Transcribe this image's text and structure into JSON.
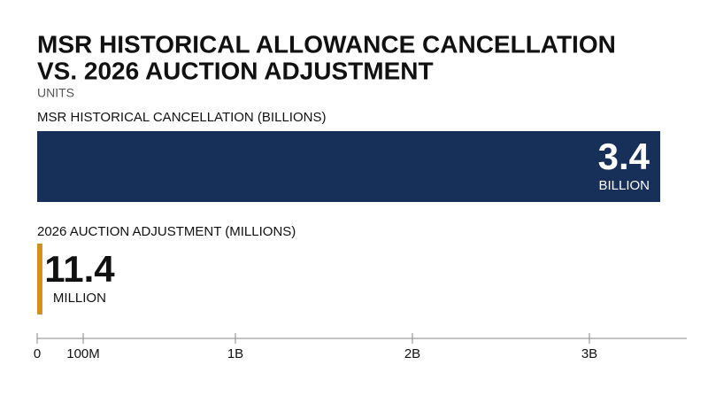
{
  "chart_data": {
    "type": "hbar",
    "title": [
      "MSR HISTORICAL ALLOWANCE CANCELLATION",
      "VS. 2026 AUCTION ADJUSTMENT"
    ],
    "subtitle": "UNITS",
    "categories": [
      "MSR HISTORICAL CANCELLATION (BILLIONS)",
      "2026 AUCTION ADJUSTMENT (MILLIONS)"
    ],
    "values": [
      3400000000,
      11400000
    ],
    "value_labels": [
      "3.4",
      "11.4"
    ],
    "unit_labels": [
      "BILLION",
      "MILLION"
    ],
    "colors": [
      "#17305a",
      "#d4901e"
    ],
    "xlim": [
      0,
      3550000000
    ],
    "xticks": [
      0,
      {
        "value": 100000000,
        "label": "100M"
      },
      {
        "value": 1000000000,
        "label": "1B"
      },
      {
        "value": 2000000000,
        "label": "2B"
      },
      {
        "value": 3000000000,
        "label": "3B"
      }
    ]
  }
}
